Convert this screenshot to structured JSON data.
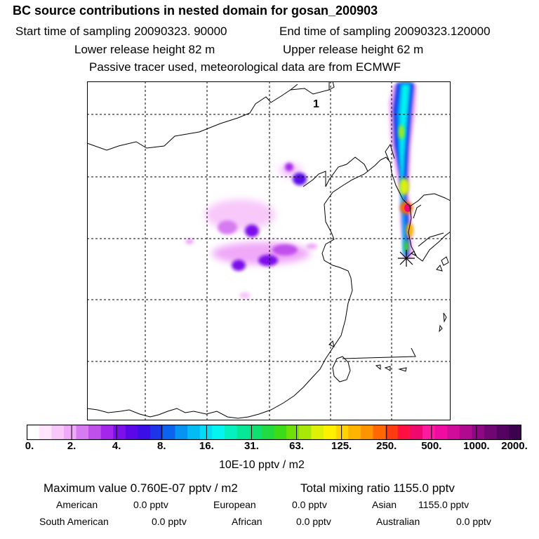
{
  "title": "BC  source contributions in nested domain for gosan_200903",
  "header": {
    "start_label": "Start time of sampling 20090323. 90000",
    "end_label": "End time of sampling 20090323.120000",
    "lower_label": "Lower release height   82 m",
    "upper_label": "Upper release height   62 m",
    "tracer_note": "Passive tracer used, meteorological data are from ECMWF"
  },
  "map": {
    "panel_label": "1",
    "release_marker": "star-marker-icon"
  },
  "colorbar": {
    "colors": [
      "#ffffff",
      "#ffe6ff",
      "#f8c8fb",
      "#f0a8f8",
      "#d67cf0",
      "#c050ec",
      "#a426ec",
      "#7c10ea",
      "#5a08e8",
      "#3a0ee6",
      "#1c34ea",
      "#0c64ee",
      "#0694f2",
      "#04bcf4",
      "#04dcf6",
      "#04f4f0",
      "#04f0c0",
      "#06e898",
      "#10e070",
      "#20dc40",
      "#3cdc18",
      "#70e008",
      "#a8e808",
      "#dcf008",
      "#fff000",
      "#ffd400",
      "#ffb400",
      "#ff9400",
      "#ff6800",
      "#ff3c10",
      "#ff1040",
      "#f0086e",
      "#ff1aa2",
      "#f00ca0",
      "#d00c9a",
      "#b00a90",
      "#8e0884",
      "#700672",
      "#540460",
      "#3c0250"
    ],
    "ticks": [
      "0.",
      "2.",
      "4.",
      "8.",
      "16.",
      "31.",
      "63.",
      "125.",
      "250.",
      "500.",
      "1000.",
      "2000."
    ],
    "units": "10E-10 pptv / m2"
  },
  "summary": {
    "max_label": "Maximum value  0.760E-07 pptv / m2",
    "total_label": "Total mixing ratio     1155.0 pptv",
    "regions": [
      {
        "name": "American",
        "value": "0.0 pptv"
      },
      {
        "name": "European",
        "value": "0.0 pptv"
      },
      {
        "name": "Asian",
        "value": "1155.0 pptv"
      },
      {
        "name": "South American",
        "value": "0.0 pptv"
      },
      {
        "name": "African",
        "value": "0.0 pptv"
      },
      {
        "name": "Australian",
        "value": "0.0 pptv"
      }
    ]
  }
}
